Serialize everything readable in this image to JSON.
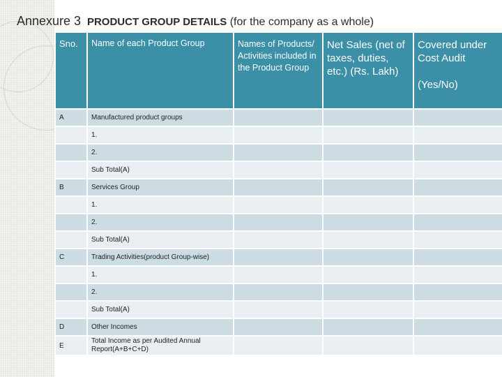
{
  "title": {
    "main": "Annexure 3",
    "sub": "PRODUCT GROUP DETAILS",
    "tail": "(for the company as a whole)"
  },
  "headers": {
    "sno": "Sno.",
    "name": "Name of each Product Group",
    "products": "Names of Products/ Activities included in the Product Group",
    "sales": "Net Sales (net of taxes, duties, etc.) (Rs. Lakh)",
    "covered_1": "Covered under Cost Audit",
    "covered_2": "(Yes/No)"
  },
  "rows": [
    {
      "sno": "A",
      "name": "Manufactured product groups"
    },
    {
      "sno": "",
      "name": "1."
    },
    {
      "sno": "",
      "name": "2."
    },
    {
      "sno": "",
      "name": "Sub Total(A)"
    },
    {
      "sno": "B",
      "name": "Services Group"
    },
    {
      "sno": "",
      "name": "1."
    },
    {
      "sno": "",
      "name": "2."
    },
    {
      "sno": "",
      "name": "Sub Total(A)"
    },
    {
      "sno": "C",
      "name": "Trading Activities(product Group-wise)"
    },
    {
      "sno": "",
      "name": "1."
    },
    {
      "sno": "",
      "name": "2."
    },
    {
      "sno": "",
      "name": "Sub Total(A)"
    },
    {
      "sno": "D",
      "name": "Other Incomes"
    },
    {
      "sno": "E",
      "name": "Total Income as per Audited Annual Report(A+B+C+D)"
    }
  ],
  "colors": {
    "header": "#3b8fa6",
    "row_dark": "#cddce3",
    "row_light": "#e8eef1"
  }
}
